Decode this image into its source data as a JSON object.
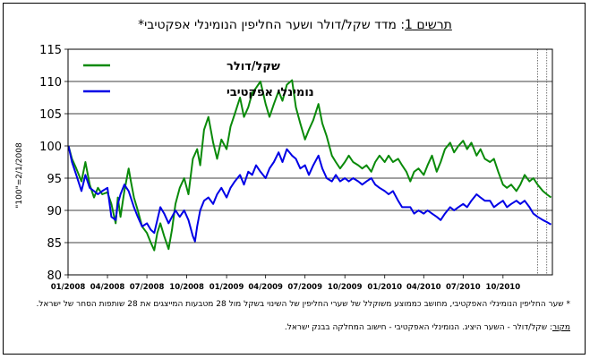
{
  "title": {
    "lead": "תרשים 1",
    "text": ": מדד שקל/דולר ושער החליפין הנומינלי אפקטיבי*"
  },
  "notes": {
    "definition": "* שער החליפין הנומינלי האפקטיבי, מחושב כממוצע משוקלל של שערי החליפין של השינוי בשקל מול 28 מטבעות המייצגים את 28 שותפות הסחר של ישראל.",
    "source_label": "מקור",
    "source_text": ": שקל/דולר - השער היציג. הנומינלי האפקטיבי - חישוב המחלקה בבנק ישראל."
  },
  "colors": {
    "usd": "#0a8a0a",
    "eff": "#0000e6",
    "grid": "#000000"
  },
  "chart_data": {
    "type": "line",
    "ylabel": "\"100\"=2/1/2008",
    "ylim": [
      80,
      115
    ],
    "yticks": [
      80,
      85,
      90,
      95,
      100,
      105,
      110,
      115
    ],
    "xlim": [
      "2008-01-01",
      "2011-01-23"
    ],
    "xticks": [
      "01/2008",
      "04/2008",
      "07/2008",
      "10/2008",
      "01/2009",
      "04/2009",
      "07/2009",
      "10/2009",
      "01/2010",
      "04/2010",
      "07/2010",
      "10/2010"
    ],
    "grid": "horizontal",
    "legend_position": "top-left",
    "vertical_markers": [
      "2010-12-20",
      "2011-01-10"
    ],
    "series": [
      {
        "name": "שקל/דולר",
        "key": "usd",
        "points": [
          [
            "2008-01-02",
            100
          ],
          [
            "2008-01-10",
            98
          ],
          [
            "2008-01-20",
            96.5
          ],
          [
            "2008-02-01",
            94.5
          ],
          [
            "2008-02-10",
            97.5
          ],
          [
            "2008-02-20",
            94
          ],
          [
            "2008-03-01",
            92
          ],
          [
            "2008-03-10",
            93.5
          ],
          [
            "2008-03-20",
            92.5
          ],
          [
            "2008-04-01",
            92.8
          ],
          [
            "2008-04-10",
            91
          ],
          [
            "2008-04-20",
            88
          ],
          [
            "2008-04-25",
            92
          ],
          [
            "2008-05-01",
            89
          ],
          [
            "2008-05-10",
            93
          ],
          [
            "2008-05-20",
            96.5
          ],
          [
            "2008-05-25",
            94.5
          ],
          [
            "2008-06-01",
            92
          ],
          [
            "2008-06-10",
            90
          ],
          [
            "2008-06-20",
            87.5
          ],
          [
            "2008-07-01",
            86.5
          ],
          [
            "2008-07-10",
            85
          ],
          [
            "2008-07-18",
            83.8
          ],
          [
            "2008-07-25",
            86.5
          ],
          [
            "2008-08-01",
            88
          ],
          [
            "2008-08-10",
            86
          ],
          [
            "2008-08-20",
            84
          ],
          [
            "2008-08-28",
            87
          ],
          [
            "2008-09-05",
            91
          ],
          [
            "2008-09-15",
            93.5
          ],
          [
            "2008-09-25",
            95
          ],
          [
            "2008-10-05",
            92.5
          ],
          [
            "2008-10-15",
            98
          ],
          [
            "2008-10-25",
            99.5
          ],
          [
            "2008-11-01",
            97
          ],
          [
            "2008-11-10",
            102.5
          ],
          [
            "2008-11-20",
            104.5
          ],
          [
            "2008-12-01",
            100.5
          ],
          [
            "2008-12-10",
            98
          ],
          [
            "2008-12-20",
            101
          ],
          [
            "2009-01-01",
            99.5
          ],
          [
            "2009-01-10",
            103
          ],
          [
            "2009-01-20",
            105
          ],
          [
            "2009-02-01",
            107.5
          ],
          [
            "2009-02-10",
            104.5
          ],
          [
            "2009-02-20",
            106
          ],
          [
            "2009-03-01",
            108.2
          ],
          [
            "2009-03-10",
            109
          ],
          [
            "2009-03-20",
            110
          ],
          [
            "2009-04-01",
            106.5
          ],
          [
            "2009-04-10",
            104.5
          ],
          [
            "2009-04-20",
            106.5
          ],
          [
            "2009-05-01",
            108.5
          ],
          [
            "2009-05-10",
            107
          ],
          [
            "2009-05-20",
            109.5
          ],
          [
            "2009-06-01",
            110.2
          ],
          [
            "2009-06-10",
            106
          ],
          [
            "2009-06-20",
            103.5
          ],
          [
            "2009-07-01",
            101
          ],
          [
            "2009-07-10",
            102.5
          ],
          [
            "2009-07-20",
            104
          ],
          [
            "2009-08-01",
            106.5
          ],
          [
            "2009-08-10",
            103.5
          ],
          [
            "2009-08-20",
            101.5
          ],
          [
            "2009-09-01",
            98.5
          ],
          [
            "2009-09-10",
            97.5
          ],
          [
            "2009-09-20",
            96.5
          ],
          [
            "2009-10-01",
            97.5
          ],
          [
            "2009-10-10",
            98.5
          ],
          [
            "2009-10-20",
            97.5
          ],
          [
            "2009-11-01",
            97
          ],
          [
            "2009-11-10",
            96.5
          ],
          [
            "2009-11-20",
            97
          ],
          [
            "2009-12-01",
            96
          ],
          [
            "2009-12-10",
            97.5
          ],
          [
            "2009-12-20",
            98.5
          ],
          [
            "2010-01-01",
            97.5
          ],
          [
            "2010-01-10",
            98.5
          ],
          [
            "2010-01-20",
            97.5
          ],
          [
            "2010-02-01",
            98
          ],
          [
            "2010-02-10",
            97
          ],
          [
            "2010-02-20",
            96
          ],
          [
            "2010-03-01",
            94.5
          ],
          [
            "2010-03-10",
            96
          ],
          [
            "2010-03-20",
            96.5
          ],
          [
            "2010-04-01",
            95.5
          ],
          [
            "2010-04-10",
            97
          ],
          [
            "2010-04-20",
            98.5
          ],
          [
            "2010-05-01",
            96
          ],
          [
            "2010-05-10",
            97.5
          ],
          [
            "2010-05-20",
            99.5
          ],
          [
            "2010-06-01",
            100.5
          ],
          [
            "2010-06-10",
            99
          ],
          [
            "2010-06-20",
            100
          ],
          [
            "2010-07-01",
            100.8
          ],
          [
            "2010-07-10",
            99.5
          ],
          [
            "2010-07-20",
            100.5
          ],
          [
            "2010-08-01",
            98.5
          ],
          [
            "2010-08-10",
            99.5
          ],
          [
            "2010-08-20",
            98
          ],
          [
            "2010-09-01",
            97.5
          ],
          [
            "2010-09-10",
            98
          ],
          [
            "2010-09-20",
            96
          ],
          [
            "2010-10-01",
            94
          ],
          [
            "2010-10-10",
            93.5
          ],
          [
            "2010-10-20",
            94
          ],
          [
            "2010-11-01",
            93
          ],
          [
            "2010-11-10",
            94
          ],
          [
            "2010-11-20",
            95.5
          ],
          [
            "2010-12-01",
            94.5
          ],
          [
            "2010-12-10",
            95
          ],
          [
            "2010-12-20",
            94
          ],
          [
            "2011-01-01",
            93
          ],
          [
            "2011-01-10",
            92.5
          ],
          [
            "2011-01-20",
            92
          ]
        ]
      },
      {
        "name": "נומינלי אפקטיבי",
        "key": "eff",
        "points": [
          [
            "2008-01-02",
            100
          ],
          [
            "2008-01-10",
            97.5
          ],
          [
            "2008-01-20",
            95.5
          ],
          [
            "2008-02-01",
            93
          ],
          [
            "2008-02-10",
            95.5
          ],
          [
            "2008-02-20",
            93.5
          ],
          [
            "2008-03-01",
            93
          ],
          [
            "2008-03-10",
            92.5
          ],
          [
            "2008-03-20",
            93
          ],
          [
            "2008-04-01",
            93.5
          ],
          [
            "2008-04-10",
            89
          ],
          [
            "2008-04-20",
            88.5
          ],
          [
            "2008-04-25",
            91
          ],
          [
            "2008-05-01",
            92.5
          ],
          [
            "2008-05-10",
            94
          ],
          [
            "2008-05-20",
            93
          ],
          [
            "2008-06-01",
            90.5
          ],
          [
            "2008-06-10",
            89
          ],
          [
            "2008-06-20",
            87.5
          ],
          [
            "2008-07-01",
            88
          ],
          [
            "2008-07-10",
            87
          ],
          [
            "2008-07-18",
            86.5
          ],
          [
            "2008-07-25",
            88.5
          ],
          [
            "2008-08-01",
            90.5
          ],
          [
            "2008-08-10",
            89.5
          ],
          [
            "2008-08-20",
            88
          ],
          [
            "2008-08-28",
            89
          ],
          [
            "2008-09-05",
            90
          ],
          [
            "2008-09-15",
            89
          ],
          [
            "2008-09-25",
            90
          ],
          [
            "2008-10-05",
            88.5
          ],
          [
            "2008-10-15",
            86
          ],
          [
            "2008-10-20",
            85.2
          ],
          [
            "2008-10-25",
            87.5
          ],
          [
            "2008-11-01",
            90
          ],
          [
            "2008-11-10",
            91.5
          ],
          [
            "2008-11-20",
            92
          ],
          [
            "2008-12-01",
            91
          ],
          [
            "2008-12-10",
            92.5
          ],
          [
            "2008-12-20",
            93.5
          ],
          [
            "2009-01-01",
            92
          ],
          [
            "2009-01-10",
            93.5
          ],
          [
            "2009-01-20",
            94.5
          ],
          [
            "2009-02-01",
            95.5
          ],
          [
            "2009-02-10",
            94
          ],
          [
            "2009-02-20",
            96
          ],
          [
            "2009-03-01",
            95.5
          ],
          [
            "2009-03-10",
            97
          ],
          [
            "2009-03-20",
            96
          ],
          [
            "2009-04-01",
            95
          ],
          [
            "2009-04-10",
            96.5
          ],
          [
            "2009-04-20",
            97.5
          ],
          [
            "2009-05-01",
            99
          ],
          [
            "2009-05-10",
            97.5
          ],
          [
            "2009-05-20",
            99.5
          ],
          [
            "2009-06-01",
            98.5
          ],
          [
            "2009-06-10",
            98
          ],
          [
            "2009-06-20",
            96.5
          ],
          [
            "2009-07-01",
            97
          ],
          [
            "2009-07-10",
            95.5
          ],
          [
            "2009-07-20",
            97
          ],
          [
            "2009-08-01",
            98.5
          ],
          [
            "2009-08-10",
            96.5
          ],
          [
            "2009-08-20",
            95
          ],
          [
            "2009-09-01",
            94.5
          ],
          [
            "2009-09-10",
            95.5
          ],
          [
            "2009-09-20",
            94.5
          ],
          [
            "2009-10-01",
            95
          ],
          [
            "2009-10-10",
            94.5
          ],
          [
            "2009-10-20",
            95
          ],
          [
            "2009-11-01",
            94.5
          ],
          [
            "2009-11-10",
            94
          ],
          [
            "2009-11-20",
            94.5
          ],
          [
            "2009-12-01",
            95
          ],
          [
            "2009-12-10",
            94
          ],
          [
            "2009-12-20",
            93.5
          ],
          [
            "2010-01-01",
            93
          ],
          [
            "2010-01-10",
            92.5
          ],
          [
            "2010-01-20",
            93
          ],
          [
            "2010-02-01",
            91.5
          ],
          [
            "2010-02-10",
            90.5
          ],
          [
            "2010-02-20",
            90.5
          ],
          [
            "2010-03-01",
            90.5
          ],
          [
            "2010-03-10",
            89.5
          ],
          [
            "2010-03-20",
            90
          ],
          [
            "2010-04-01",
            89.5
          ],
          [
            "2010-04-10",
            90
          ],
          [
            "2010-04-20",
            89.5
          ],
          [
            "2010-05-01",
            89
          ],
          [
            "2010-05-10",
            88.5
          ],
          [
            "2010-05-20",
            89.5
          ],
          [
            "2010-06-01",
            90.5
          ],
          [
            "2010-06-10",
            90
          ],
          [
            "2010-06-20",
            90.5
          ],
          [
            "2010-07-01",
            91
          ],
          [
            "2010-07-10",
            90.5
          ],
          [
            "2010-07-20",
            91.5
          ],
          [
            "2010-08-01",
            92.5
          ],
          [
            "2010-08-10",
            92
          ],
          [
            "2010-08-20",
            91.5
          ],
          [
            "2010-09-01",
            91.5
          ],
          [
            "2010-09-10",
            90.5
          ],
          [
            "2010-09-20",
            91
          ],
          [
            "2010-10-01",
            91.5
          ],
          [
            "2010-10-10",
            90.5
          ],
          [
            "2010-10-20",
            91
          ],
          [
            "2010-11-01",
            91.5
          ],
          [
            "2010-11-10",
            91
          ],
          [
            "2010-11-20",
            91.5
          ],
          [
            "2010-12-01",
            90.5
          ],
          [
            "2010-12-10",
            89.5
          ],
          [
            "2010-12-20",
            89
          ],
          [
            "2011-01-01",
            88.5
          ],
          [
            "2011-01-10",
            88.2
          ],
          [
            "2011-01-20",
            87.8
          ]
        ]
      }
    ]
  }
}
